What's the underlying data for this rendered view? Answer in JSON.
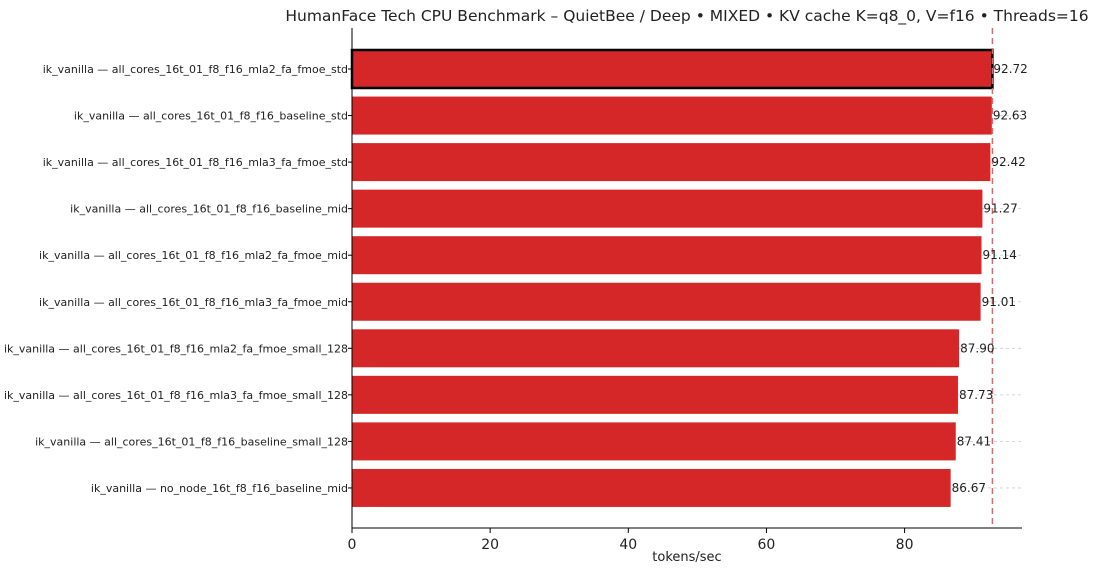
{
  "chart_data": {
    "type": "bar",
    "orientation": "horizontal",
    "title": "HumanFace Tech CPU Benchmark – QuietBee / Deep • MIXED • KV cache K=q8_0, V=f16 • Threads=16",
    "xlabel": "tokens/sec",
    "ylabel": "",
    "xlim": [
      0,
      97
    ],
    "xticks": [
      0,
      20,
      40,
      60,
      80
    ],
    "grid": "horizontal dashed",
    "bar_color": "#d62728",
    "highlight_color": "#000000",
    "reference_line_color": "#e06666",
    "reference_line_value": 92.72,
    "highlighted_index": 0,
    "categories": [
      "ik_vanilla — all_cores_16t_01_f8_f16_mla2_fa_fmoe_std",
      "ik_vanilla — all_cores_16t_01_f8_f16_baseline_std",
      "ik_vanilla — all_cores_16t_01_f8_f16_mla3_fa_fmoe_std",
      "ik_vanilla — all_cores_16t_01_f8_f16_baseline_mid",
      "ik_vanilla — all_cores_16t_01_f8_f16_mla2_fa_fmoe_mid",
      "ik_vanilla — all_cores_16t_01_f8_f16_mla3_fa_fmoe_mid",
      "ik_vanilla — all_cores_16t_01_f8_f16_mla2_fa_fmoe_small_128",
      "ik_vanilla — all_cores_16t_01_f8_f16_mla3_fa_fmoe_small_128",
      "ik_vanilla — all_cores_16t_01_f8_f16_baseline_small_128",
      "ik_vanilla — no_node_16t_f8_f16_baseline_mid"
    ],
    "values": [
      92.72,
      92.63,
      92.42,
      91.27,
      91.14,
      91.01,
      87.9,
      87.73,
      87.41,
      86.67
    ],
    "value_labels": [
      "92.72",
      "92.63",
      "92.42",
      "91.27",
      "91.14",
      "91.01",
      "87.90",
      "87.73",
      "87.41",
      "86.67"
    ]
  }
}
